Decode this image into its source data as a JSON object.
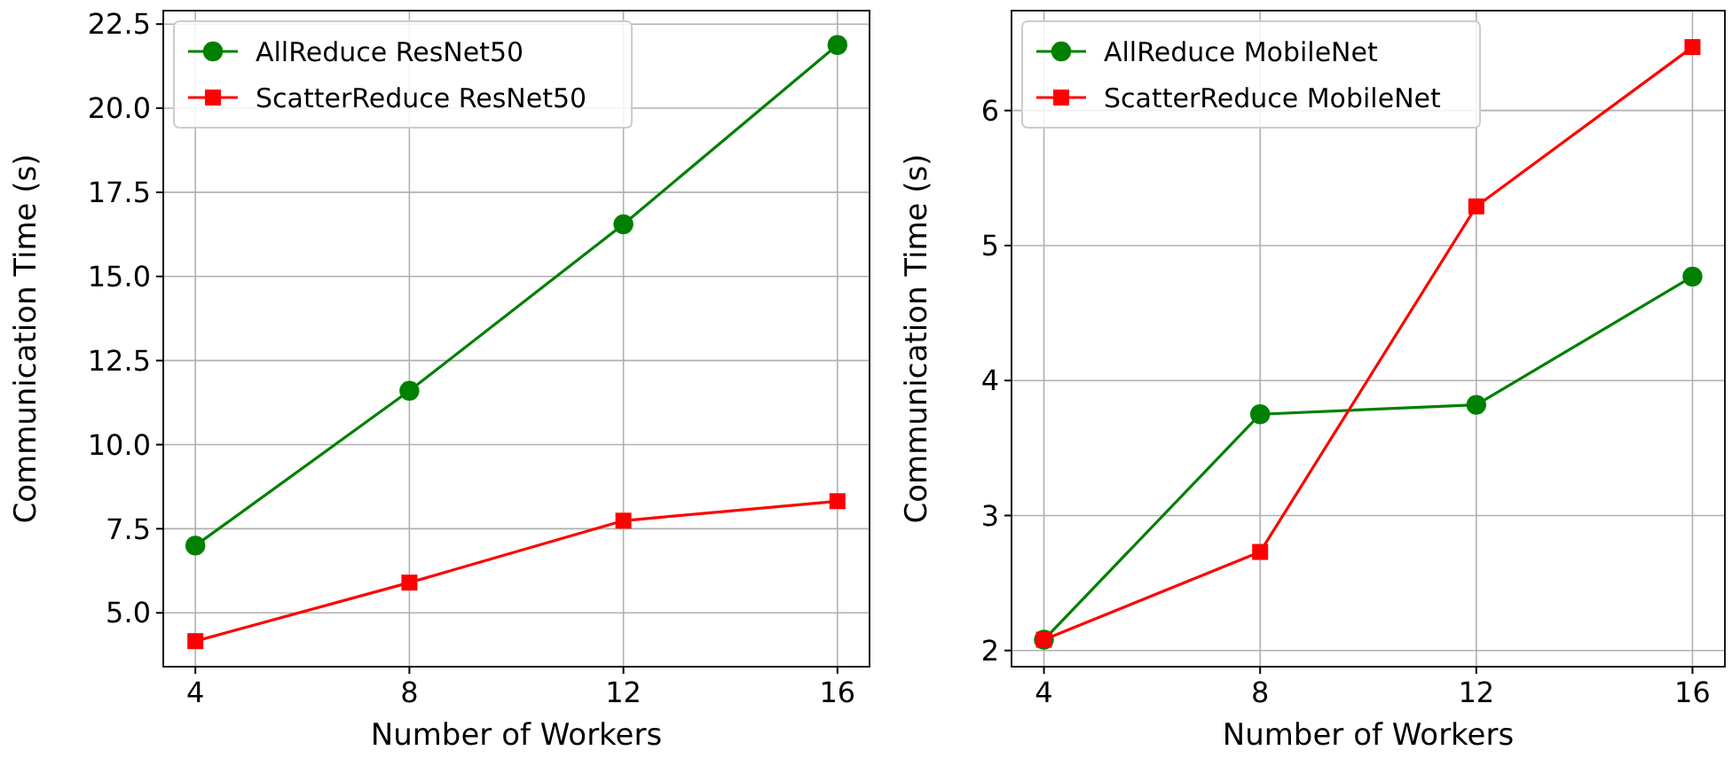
{
  "chart_data": [
    {
      "type": "line",
      "xlabel": "Number of Workers",
      "ylabel": "Communication Time (s)",
      "x": [
        4,
        8,
        12,
        16
      ],
      "xlim": [
        3.4,
        16.6
      ],
      "xticks": [
        4,
        8,
        12,
        16
      ],
      "ylim": [
        3.4,
        22.9
      ],
      "yticks": [
        {
          "value": 5,
          "label": "5.0"
        },
        7.5,
        {
          "value": 10,
          "label": "10.0"
        },
        12.5,
        {
          "value": 15,
          "label": "15.0"
        },
        17.5,
        {
          "value": 20,
          "label": "20.0"
        },
        22.5
      ],
      "grid": true,
      "legend": "top left",
      "series": [
        {
          "name": "AllReduce ResNet50",
          "color": "#008000",
          "marker": "circle",
          "values": [
            7.0,
            11.6,
            16.55,
            21.88
          ]
        },
        {
          "name": "ScatterReduce ResNet50",
          "color": "#ff0000",
          "marker": "square",
          "values": [
            4.16,
            5.9,
            7.74,
            8.32
          ]
        }
      ]
    },
    {
      "type": "line",
      "xlabel": "Number of Workers",
      "ylabel": "Communication Time (s)",
      "x": [
        4,
        8,
        12,
        16
      ],
      "xlim": [
        3.4,
        16.6
      ],
      "xticks": [
        4,
        8,
        12,
        16
      ],
      "ylim": [
        1.88,
        6.74
      ],
      "yticks": [
        2,
        3,
        4,
        5,
        6
      ],
      "grid": true,
      "legend": "top left",
      "series": [
        {
          "name": "AllReduce MobileNet",
          "color": "#008000",
          "marker": "circle",
          "values": [
            2.08,
            3.75,
            3.82,
            4.77
          ]
        },
        {
          "name": "ScatterReduce MobileNet",
          "color": "#ff0000",
          "marker": "square",
          "values": [
            2.08,
            2.73,
            5.29,
            6.47
          ]
        }
      ]
    }
  ]
}
